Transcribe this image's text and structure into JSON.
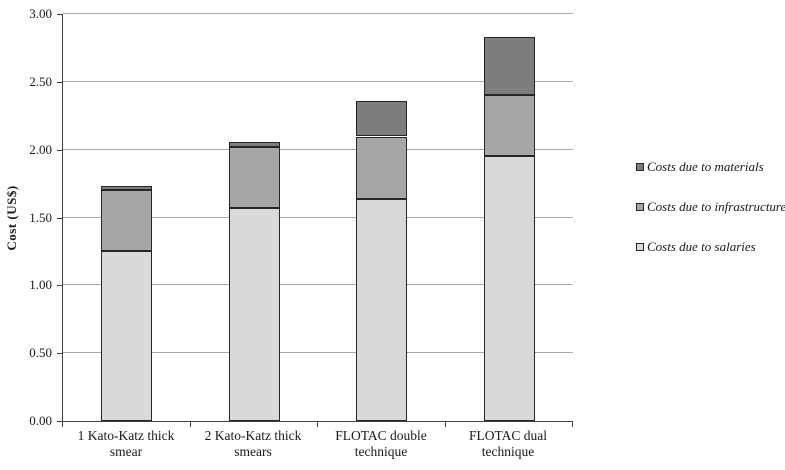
{
  "chart_data": {
    "type": "bar",
    "stacked": true,
    "title": "",
    "xlabel": "",
    "ylabel": "Cost (US$)",
    "ylim": [
      0,
      3
    ],
    "ytick_step": 0.5,
    "ytick_labels": [
      "0.00",
      "0.50",
      "1.00",
      "1.50",
      "2.00",
      "2.50",
      "3.00"
    ],
    "grid": true,
    "legend_position": "right",
    "categories": [
      "1 Kato-Katz thick smear",
      "2 Kato-Katz thick smears",
      "FLOTAC double technique",
      "FLOTAC dual technique"
    ],
    "series": [
      {
        "name": "Costs due to salaries",
        "color": "#d9d9d9",
        "values": [
          1.25,
          1.57,
          1.64,
          1.95
        ]
      },
      {
        "name": "Costs due to infrastructure",
        "color": "#a6a6a6",
        "values": [
          0.45,
          0.45,
          0.46,
          0.45
        ]
      },
      {
        "name": "Costs due to materials",
        "color": "#7d7d7d",
        "values": [
          0.03,
          0.04,
          0.26,
          0.43
        ]
      }
    ],
    "stacked_totals": [
      1.73,
      2.06,
      2.36,
      2.83
    ],
    "colors": {
      "gridline": "#a9a9a9",
      "axis_line": "#404040",
      "bar_border": "#262626",
      "background": "#ffffff"
    }
  }
}
